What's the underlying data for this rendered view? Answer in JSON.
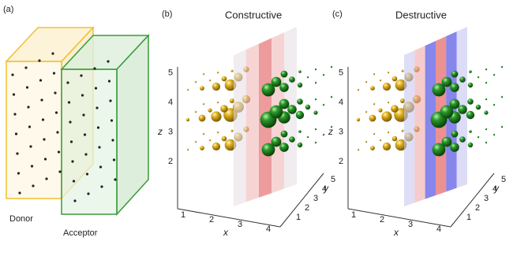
{
  "panels": [
    {
      "label": "(a)",
      "boxes": [
        "Donor",
        "Acceptor"
      ]
    },
    {
      "label": "(b)",
      "title": "Constructive",
      "axes": {
        "x": {
          "label": "x",
          "ticks": [
            "1",
            "2",
            "3",
            "4"
          ]
        },
        "y": {
          "label": "y",
          "ticks": [
            "1",
            "2",
            "3",
            "4",
            "5"
          ]
        },
        "z": {
          "label": "z",
          "ticks": [
            "2",
            "3",
            "4",
            "5"
          ]
        }
      }
    },
    {
      "label": "(c)",
      "title": "Destructive",
      "axes": {
        "x": {
          "label": "x",
          "ticks": [
            "1",
            "2",
            "3",
            "4"
          ]
        },
        "y": {
          "label": "y",
          "ticks": [
            "1",
            "2",
            "3",
            "4",
            "5"
          ]
        },
        "z": {
          "label": "z",
          "ticks": [
            "2",
            "3",
            "4",
            "5"
          ]
        }
      }
    }
  ]
}
